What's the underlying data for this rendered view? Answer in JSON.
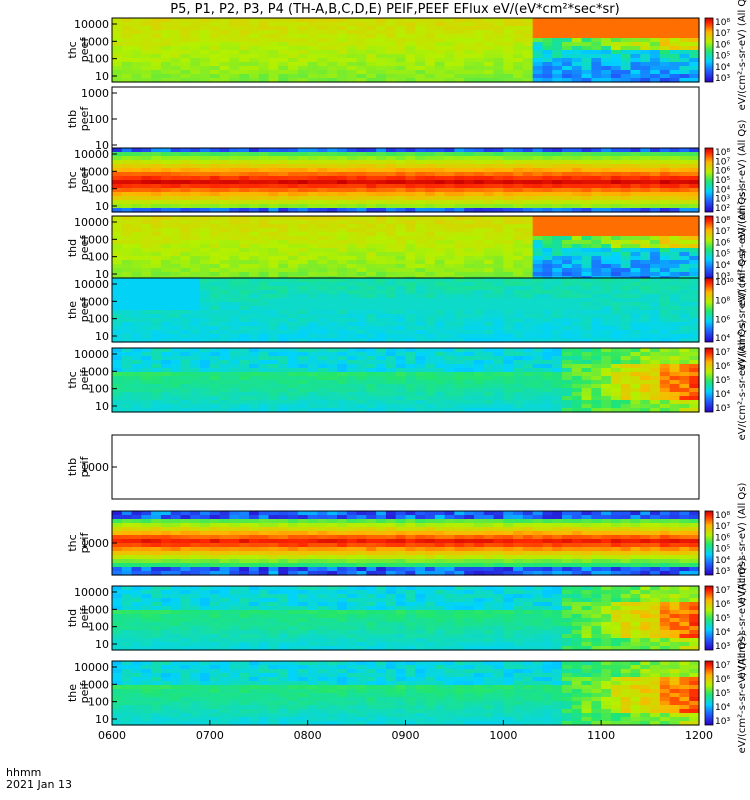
{
  "chart_data": {
    "type": "heatmap",
    "title": "P5, P1, P2, P3, P4 (TH-A,B,C,D,E) PEIF,PEEF EFlux eV/(eV*cm²*sec*sr)",
    "x_ticks": [
      "0600",
      "0700",
      "0800",
      "0900",
      "1000",
      "1100",
      "1200"
    ],
    "xlim": [
      "0600",
      "1200"
    ],
    "footer": {
      "label": "hhmm",
      "date": "2021 Jan 13"
    },
    "colorbar_scale": "log",
    "colormap": "rainbow (blue-cyan-green-yellow-red)",
    "panels": [
      {
        "label": [
          "thc",
          "peef"
        ],
        "missing": false,
        "style": "electron",
        "ticks": [
          "10000",
          "1000",
          "100",
          "10"
        ],
        "cbar": [
          "10⁸",
          "10⁷",
          "10⁶",
          "10⁵",
          "10⁴",
          "10³"
        ],
        "unit": "(All Qs)"
      },
      {
        "label": [
          "thb",
          "peef"
        ],
        "missing": true,
        "style": "none",
        "ticks": [
          "1000",
          "100",
          "10"
        ],
        "cbar": [],
        "unit": ""
      },
      {
        "label": [
          "thc",
          "peef"
        ],
        "missing": false,
        "style": "thc_e",
        "ticks": [
          "10000",
          "1000",
          "100",
          "10"
        ],
        "cbar": [
          "10⁸",
          "10⁷",
          "10⁶",
          "10⁵",
          "10⁴",
          "10³",
          "10²"
        ],
        "unit": "(All Qs)"
      },
      {
        "label": [
          "thd",
          "peef"
        ],
        "missing": false,
        "style": "electron2",
        "ticks": [
          "10000",
          "1000",
          "100",
          "10"
        ],
        "cbar": [
          "10⁸",
          "10⁷",
          "10⁶",
          "10⁵",
          "10⁴",
          "10³"
        ],
        "unit": "(All Qs)"
      },
      {
        "label": [
          "the",
          "peef"
        ],
        "missing": false,
        "style": "the_e",
        "ticks": [
          "10000",
          "1000",
          "100",
          "10"
        ],
        "cbar": [
          "10¹⁰",
          "10⁸",
          "10⁶",
          "10⁴"
        ],
        "unit": "(All Qs)"
      },
      {
        "label": [
          "thc",
          "peif"
        ],
        "missing": false,
        "style": "ion",
        "ticks": [
          "10000",
          "1000",
          "100",
          "10"
        ],
        "cbar": [
          "10⁷",
          "10⁶",
          "10⁵",
          "10⁴",
          "10³"
        ],
        "unit": "(All Qs)"
      },
      {
        "label": [
          "thb",
          "peif"
        ],
        "missing": true,
        "style": "none",
        "ticks": [
          "1000"
        ],
        "cbar": [],
        "unit": ""
      },
      {
        "label": [
          "thc",
          "peif"
        ],
        "missing": false,
        "style": "thc_i",
        "ticks": [
          "1000"
        ],
        "cbar": [
          "10⁸",
          "10⁷",
          "10⁶",
          "10⁵",
          "10⁴",
          "10³"
        ],
        "unit": "(All Qs)"
      },
      {
        "label": [
          "thd",
          "peif"
        ],
        "missing": false,
        "style": "ion2",
        "ticks": [
          "10000",
          "1000",
          "100",
          "10"
        ],
        "cbar": [
          "10⁷",
          "10⁶",
          "10⁵",
          "10⁴",
          "10³"
        ],
        "unit": "(All Qs)"
      },
      {
        "label": [
          "the",
          "peif"
        ],
        "missing": false,
        "style": "ion3",
        "ticks": [
          "10000",
          "1000",
          "100",
          "10"
        ],
        "cbar": [
          "10⁷",
          "10⁶",
          "10⁵",
          "10⁴",
          "10³"
        ],
        "unit": "(All Qs)"
      }
    ],
    "unit_label": "eV/(cm²-s-sr-eV)"
  }
}
